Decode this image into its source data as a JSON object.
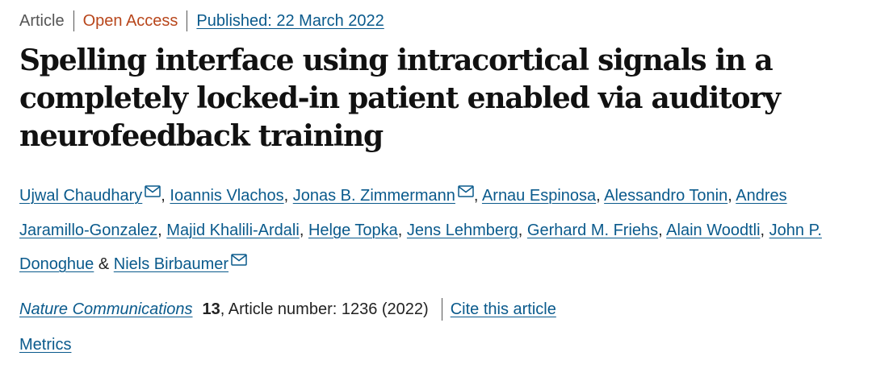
{
  "header": {
    "type": "Article",
    "access": "Open Access",
    "published": "Published: 22 March 2022"
  },
  "title": "Spelling interface using intracortical signals in a completely locked-in patient enabled via auditory neurofeedback training",
  "authors": [
    {
      "name": "Ujwal Chaudhary",
      "email": true,
      "separator": ","
    },
    {
      "name": "Ioannis Vlachos",
      "email": false,
      "separator": ","
    },
    {
      "name": "Jonas B. Zimmermann",
      "email": true,
      "separator": ","
    },
    {
      "name": "Arnau Espinosa",
      "email": false,
      "separator": ","
    },
    {
      "name": "Alessandro Tonin",
      "email": false,
      "separator": ","
    },
    {
      "name": "Andres Jaramillo-Gonzalez",
      "email": false,
      "separator": ","
    },
    {
      "name": "Majid Khalili-Ardali",
      "email": false,
      "separator": ","
    },
    {
      "name": "Helge Topka",
      "email": false,
      "separator": ","
    },
    {
      "name": "Jens Lehmberg",
      "email": false,
      "separator": ","
    },
    {
      "name": "Gerhard M. Friehs",
      "email": false,
      "separator": ","
    },
    {
      "name": "Alain Woodtli",
      "email": false,
      "separator": ","
    },
    {
      "name": "John P. Donoghue",
      "email": false,
      "separator": "&"
    },
    {
      "name": "Niels Birbaumer",
      "email": true
    }
  ],
  "citation": {
    "journal": "Nature Communications",
    "volume": "13",
    "details": ", Article number: 1236 (2022)",
    "cite_link": "Cite this article"
  },
  "metrics": "Metrics"
}
